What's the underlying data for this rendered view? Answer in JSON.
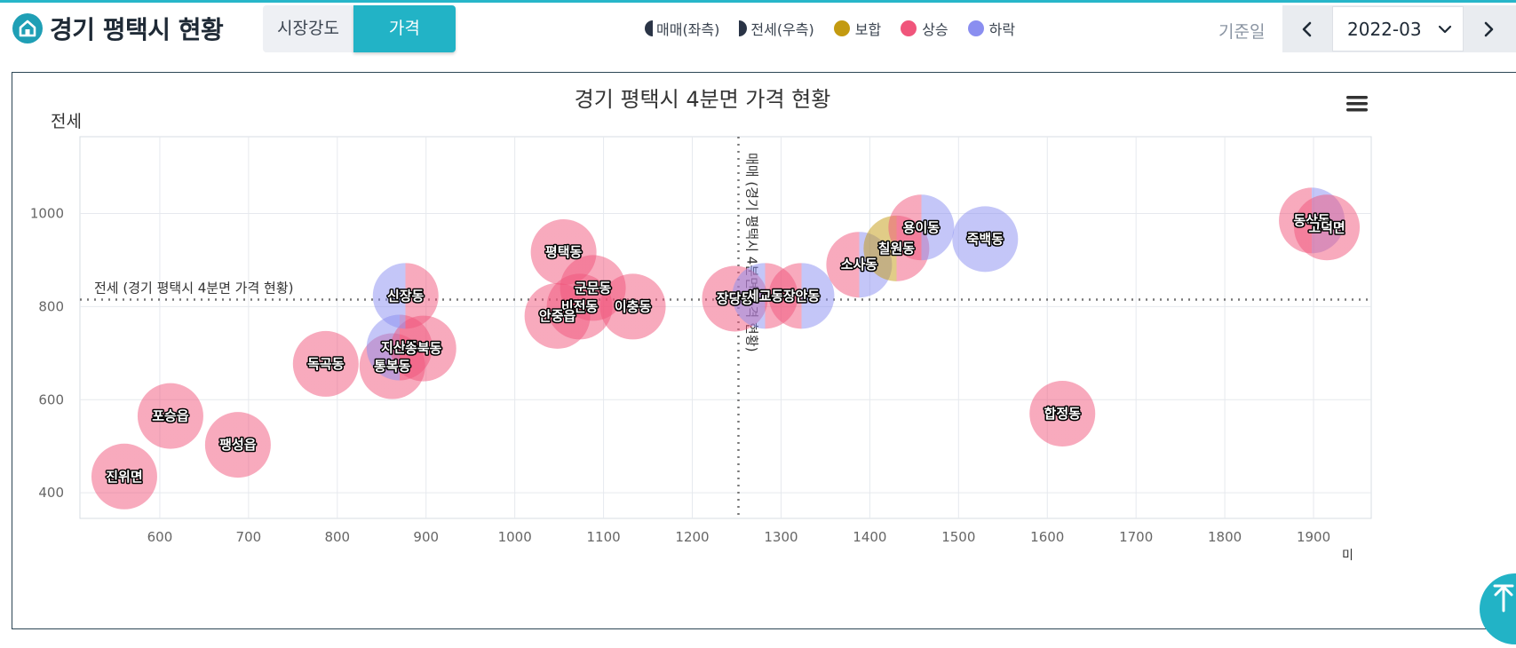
{
  "header": {
    "title": "경기 평택시 현황",
    "tabs": [
      {
        "label": "시장강도",
        "active": false
      },
      {
        "label": "가격",
        "active": true
      }
    ],
    "legend": [
      {
        "label": "매매(좌측)",
        "icon": "half-circle-left-icon"
      },
      {
        "label": "전세(우측)",
        "icon": "half-circle-right-icon"
      },
      {
        "label": "보합",
        "color": "#c39a10"
      },
      {
        "label": "상승",
        "color": "#f0557b"
      },
      {
        "label": "하락",
        "color": "#8a8ef0"
      }
    ],
    "date_label": "기준일",
    "date_value": "2022-03"
  },
  "chart_data": {
    "type": "scatter",
    "title": "경기 평택시 4분면 가격 현황",
    "ylabel": "전세",
    "xlabel_partial": "미",
    "xlim": [
      510,
      1965
    ],
    "ylim": [
      345,
      1165
    ],
    "xticks": [
      600,
      700,
      800,
      900,
      1000,
      1100,
      1200,
      1300,
      1400,
      1500,
      1600,
      1700,
      1800,
      1900
    ],
    "yticks": [
      400,
      600,
      800,
      1000
    ],
    "ref_lines": {
      "horizontal": {
        "value": 815,
        "label": "전세 (경기 평택시 4분면 가격 현황)"
      },
      "vertical": {
        "value": 1252,
        "label": "매매 (경기 평택시 4분면 가격 현황)"
      }
    },
    "colors": {
      "up": "#f0557b",
      "down": "#8a8ef0",
      "flat": "#c39a10"
    },
    "points": [
      {
        "name": "진위면",
        "x": 560,
        "y": 435,
        "sale": "up",
        "rent": "up"
      },
      {
        "name": "포승읍",
        "x": 612,
        "y": 565,
        "sale": "up",
        "rent": "up"
      },
      {
        "name": "팽성읍",
        "x": 688,
        "y": 503,
        "sale": "up",
        "rent": "up"
      },
      {
        "name": "독곡동",
        "x": 787,
        "y": 677,
        "sale": "up",
        "rent": "up"
      },
      {
        "name": "통복동",
        "x": 862,
        "y": 672,
        "sale": "up",
        "rent": "up"
      },
      {
        "name": "지산동",
        "x": 870,
        "y": 712,
        "sale": "down",
        "rent": "up"
      },
      {
        "name": "송북동",
        "x": 897,
        "y": 710,
        "sale": "up",
        "rent": "up"
      },
      {
        "name": "신장동",
        "x": 877,
        "y": 823,
        "sale": "down",
        "rent": "up"
      },
      {
        "name": "평택동",
        "x": 1055,
        "y": 917,
        "sale": "up",
        "rent": "up"
      },
      {
        "name": "군문동",
        "x": 1088,
        "y": 840,
        "sale": "up",
        "rent": "up"
      },
      {
        "name": "비전동",
        "x": 1073,
        "y": 800,
        "sale": "up",
        "rent": "up"
      },
      {
        "name": "안중읍",
        "x": 1048,
        "y": 780,
        "sale": "up",
        "rent": "up"
      },
      {
        "name": "이충동",
        "x": 1133,
        "y": 800,
        "sale": "up",
        "rent": "up"
      },
      {
        "name": "장당동",
        "x": 1248,
        "y": 817,
        "sale": "up",
        "rent": "up"
      },
      {
        "name": "세교동",
        "x": 1282,
        "y": 823,
        "sale": "down",
        "rent": "up"
      },
      {
        "name": "장안동",
        "x": 1323,
        "y": 823,
        "sale": "up",
        "rent": "down"
      },
      {
        "name": "소사동",
        "x": 1388,
        "y": 890,
        "sale": "up",
        "rent": "down"
      },
      {
        "name": "칠원동",
        "x": 1430,
        "y": 925,
        "sale": "flat",
        "rent": "up"
      },
      {
        "name": "용이동",
        "x": 1458,
        "y": 970,
        "sale": "up",
        "rent": "down"
      },
      {
        "name": "죽백동",
        "x": 1530,
        "y": 945,
        "sale": "down",
        "rent": "down"
      },
      {
        "name": "합정동",
        "x": 1617,
        "y": 570,
        "sale": "up",
        "rent": "up"
      },
      {
        "name": "동삭동",
        "x": 1898,
        "y": 985,
        "sale": "up",
        "rent": "down"
      },
      {
        "name": "고덕면",
        "x": 1915,
        "y": 970,
        "sale": "up",
        "rent": "up"
      }
    ]
  }
}
